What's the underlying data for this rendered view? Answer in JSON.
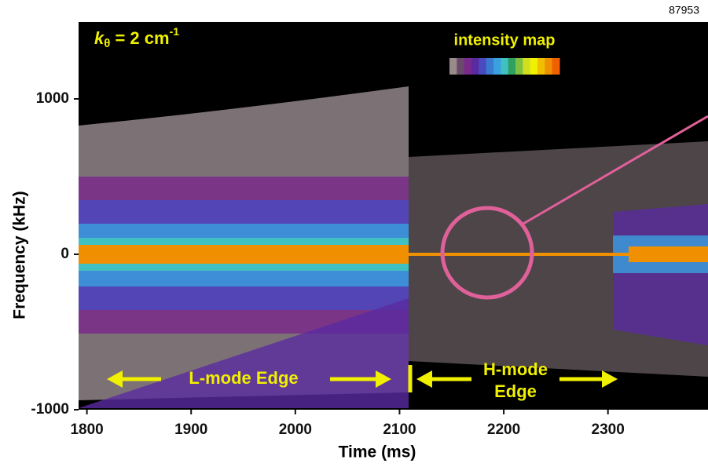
{
  "chart_data": {
    "type": "spectrogram",
    "id_label": "87953",
    "wavenumber_label": {
      "symbol": "k",
      "subscript": "θ",
      "text": " = 2 cm",
      "superscript": "-1"
    },
    "colorbar_title": "intensity map",
    "colormap": [
      "#9a8a8a",
      "#6a4a6a",
      "#7a2a8a",
      "#5a2aa0",
      "#4a4ac0",
      "#3a7ad0",
      "#3aa0e0",
      "#40c0c0",
      "#30a060",
      "#80c040",
      "#d0e020",
      "#f0f000",
      "#f0c000",
      "#f09000",
      "#f06000"
    ],
    "annotations": [
      "L-mode Edge",
      "H-mode",
      "Edge"
    ],
    "x_label": "Time (ms)",
    "y_label": "Frequency (kHz)",
    "xlim": [
      1792,
      2396
    ],
    "xticks": [
      1800,
      1900,
      2000,
      2100,
      2200,
      2300
    ],
    "ylim": [
      -1000,
      1495
    ],
    "yticks": [
      -1000,
      0,
      1000
    ]
  }
}
